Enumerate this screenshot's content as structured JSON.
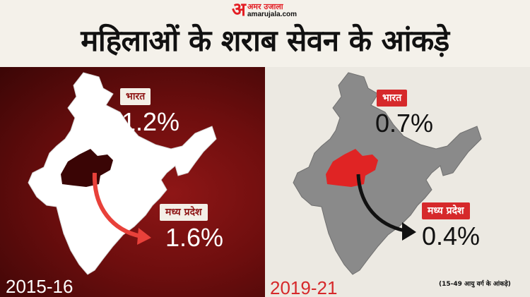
{
  "brand": {
    "mark": "अ",
    "name_hindi": "अमर उजाला",
    "domain": "amarujala.com",
    "color": "#e31e24"
  },
  "title": "महिलाओं के शराब सेवन के आंकड़े",
  "panels": [
    {
      "year": "2015-16",
      "india_label": "भारत",
      "india_value": "1.2%",
      "state_label": "मध्य प्रदेश",
      "state_value": "1.6%",
      "background": "#6e0e0e",
      "highlight_color": "#3a0505",
      "arrow_color": "#e8413a"
    },
    {
      "year": "2019-21",
      "india_label": "भारत",
      "india_value": "0.7%",
      "state_label": "मध्य प्रदेश",
      "state_value": "0.4%",
      "background": "#ece9e2",
      "highlight_color": "#e02424",
      "arrow_color": "#111111"
    }
  ],
  "note": "(15-49 आयु वर्ग के आंकड़े)",
  "icons": [
    "india-map-icon",
    "madhya-pradesh-highlight-icon",
    "curved-arrow-icon"
  ]
}
